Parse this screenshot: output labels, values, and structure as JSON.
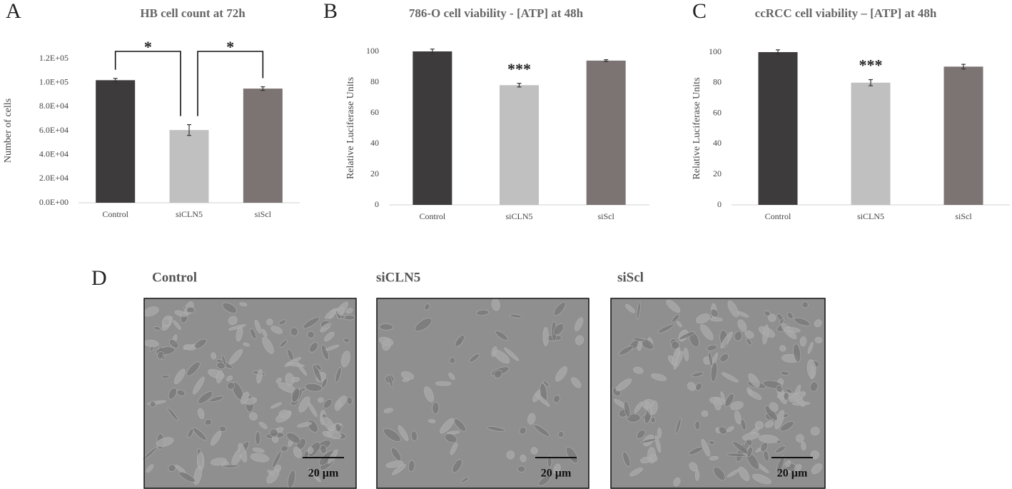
{
  "chart_data": [
    {
      "type": "bar",
      "panel_label": "A",
      "title": "HB cell count at 72h",
      "y_label": "Number of cells",
      "categories": [
        "Control",
        "siCLN5",
        "siScl"
      ],
      "values": [
        102000,
        60500,
        95000
      ],
      "errors": [
        1500,
        4500,
        1500
      ],
      "colors": [
        "#3d3b3c",
        "#c0c0c0",
        "#7b7472"
      ],
      "ylim": [
        0,
        120000
      ],
      "yticks": [
        {
          "value": 0,
          "label": "0.0E+00"
        },
        {
          "value": 20000,
          "label": "2.0E+04"
        },
        {
          "value": 40000,
          "label": "4.0E+04"
        },
        {
          "value": 60000,
          "label": "6.0E+04"
        },
        {
          "value": 80000,
          "label": "8.0E+04"
        },
        {
          "value": 100000,
          "label": "1.0E+05"
        },
        {
          "value": 120000,
          "label": "1.2E+05"
        }
      ],
      "annotations": [
        {
          "text": "*",
          "between": [
            0,
            1
          ]
        },
        {
          "text": "*",
          "between": [
            1,
            2
          ]
        }
      ]
    },
    {
      "type": "bar",
      "panel_label": "B",
      "title": "786-O cell viability - [ATP] at 48h",
      "y_label": "Relative Luciferase Units",
      "categories": [
        "Control",
        "siCLN5",
        "siScl"
      ],
      "values": [
        100,
        78,
        94
      ],
      "errors": [
        1.5,
        1.2,
        0.6
      ],
      "colors": [
        "#3d3b3c",
        "#c0c0c0",
        "#7b7472"
      ],
      "ylim": [
        0,
        100
      ],
      "yticks": [
        0,
        20,
        40,
        60,
        80,
        100
      ],
      "annotations": [
        {
          "text": "***",
          "over": 1
        }
      ]
    },
    {
      "type": "bar",
      "panel_label": "C",
      "title": "ccRCC cell viability – [ATP] at 48h",
      "y_label": "Relative Luciferase Units",
      "categories": [
        "Control",
        "siCLN5",
        "siScl"
      ],
      "values": [
        100,
        80,
        90.5
      ],
      "errors": [
        1.5,
        2,
        1.5
      ],
      "colors": [
        "#3d3b3c",
        "#c0c0c0",
        "#7b7472"
      ],
      "ylim": [
        0,
        100
      ],
      "yticks": [
        0,
        20,
        40,
        60,
        80,
        100
      ],
      "annotations": [
        {
          "text": "***",
          "over": 1
        }
      ]
    }
  ],
  "panel_d": {
    "label": "D",
    "images": [
      {
        "title": "Control",
        "scale_bar": "20 µm"
      },
      {
        "title": "siCLN5",
        "scale_bar": "20 µm"
      },
      {
        "title": "siScl",
        "scale_bar": "20 µm"
      }
    ]
  }
}
